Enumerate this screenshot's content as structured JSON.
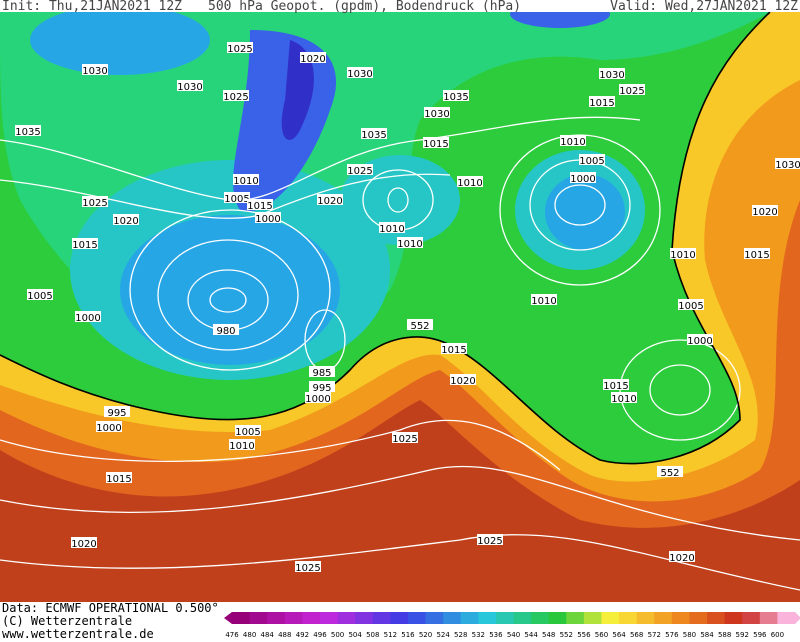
{
  "header": {
    "init": "Init: Thu,21JAN2021 12Z",
    "title": "500 hPa Geopot. (gpdm), Bodendruck (hPa)",
    "valid": "Valid: Wed,27JAN2021 12Z"
  },
  "map": {
    "isobar_labels": [
      "1025",
      "1020",
      "1030",
      "1030",
      "1030",
      "1025",
      "1035",
      "1030",
      "1030",
      "1015",
      "1025",
      "1035",
      "1035",
      "1015",
      "1010",
      "1005",
      "1000",
      "1030",
      "1025",
      "1010",
      "1010",
      "1005",
      "1015",
      "1000",
      "1020",
      "1025",
      "1020",
      "1015",
      "1010",
      "1010",
      "1020",
      "1010",
      "1015",
      "1005",
      "1000",
      "980",
      "1010",
      "1005",
      "552",
      "1015",
      "1000",
      "985",
      "995",
      "1000",
      "1020",
      "1015",
      "1010",
      "995",
      "1000",
      "1005",
      "1010",
      "1025",
      "552",
      "1015",
      "1025",
      "1020",
      "1020",
      "1025"
    ]
  },
  "footer": {
    "data": "Data: ECMWF OPERATIONAL 0.500°",
    "copyright": "(C) Wetterzentrale",
    "url": "www.wetterzentrale.de"
  },
  "colorbar": {
    "labels": [
      476,
      480,
      484,
      488,
      492,
      496,
      500,
      504,
      508,
      512,
      516,
      520,
      524,
      528,
      532,
      536,
      540,
      544,
      548,
      552,
      556,
      560,
      564,
      568,
      572,
      576,
      580,
      584,
      588,
      592,
      596,
      600
    ]
  }
}
